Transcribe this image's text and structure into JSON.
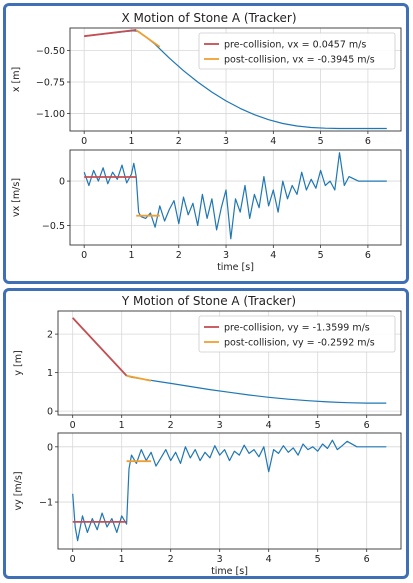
{
  "chart_data": [
    {
      "type": "line",
      "title": "X Motion of Stone A (Tracker)",
      "subplots": [
        {
          "ylabel": "x [m]",
          "xlabel": "",
          "xlim": [
            -0.3,
            6.7
          ],
          "ylim": [
            -1.14,
            -0.32
          ],
          "xticks": [
            0,
            1,
            2,
            3,
            4,
            5,
            6
          ],
          "yticks": [
            -0.5,
            -0.75,
            -1.0
          ],
          "ytick_labels": [
            "−0.50",
            "−0.75",
            "−1.00"
          ],
          "grid": true,
          "legend": {
            "location": "top-right",
            "entries": [
              "pre-collision, vx = 0.0457 m/s",
              "post-collision, vx = -0.3945 m/s"
            ]
          },
          "series": [
            {
              "color": "#1f77b4",
              "x": [
                0,
                0.3,
                0.6,
                0.9,
                1.05,
                1.15,
                1.3,
                1.5,
                1.8,
                2.1,
                2.4,
                2.7,
                3.0,
                3.3,
                3.6,
                3.9,
                4.2,
                4.5,
                4.8,
                5.1,
                5.4,
                5.7,
                6.0,
                6.4
              ],
              "y": [
                -0.385,
                -0.372,
                -0.36,
                -0.347,
                -0.342,
                -0.348,
                -0.39,
                -0.45,
                -0.56,
                -0.66,
                -0.75,
                -0.83,
                -0.9,
                -0.96,
                -1.01,
                -1.05,
                -1.08,
                -1.1,
                -1.112,
                -1.118,
                -1.12,
                -1.12,
                -1.12,
                -1.12
              ]
            },
            {
              "name": "pre-collision, vx = 0.0457 m/s",
              "color": "#c44e52",
              "x": [
                0,
                1.1
              ],
              "y": [
                -0.385,
                -0.335
              ]
            },
            {
              "name": "post-collision, vx = -0.3945 m/s",
              "color": "#f0a030",
              "x": [
                1.1,
                1.6
              ],
              "y": [
                -0.337,
                -0.47
              ]
            }
          ]
        },
        {
          "ylabel": "vx [m/s]",
          "xlabel": "time [s]",
          "xlim": [
            -0.3,
            6.7
          ],
          "ylim": [
            -0.72,
            0.35
          ],
          "xticks": [
            0,
            1,
            2,
            3,
            4,
            5,
            6
          ],
          "yticks": [
            0,
            -0.5
          ],
          "ytick_labels": [
            "0",
            "−0.5"
          ],
          "grid": true,
          "series": [
            {
              "color": "#1f77b4",
              "x": [
                0,
                0.1,
                0.2,
                0.3,
                0.4,
                0.5,
                0.6,
                0.7,
                0.8,
                0.9,
                1.0,
                1.05,
                1.1,
                1.15,
                1.2,
                1.3,
                1.4,
                1.5,
                1.6,
                1.7,
                1.8,
                1.9,
                2.0,
                2.1,
                2.2,
                2.3,
                2.4,
                2.5,
                2.6,
                2.7,
                2.8,
                2.9,
                3.0,
                3.1,
                3.2,
                3.3,
                3.4,
                3.5,
                3.6,
                3.7,
                3.8,
                3.9,
                4.0,
                4.1,
                4.2,
                4.3,
                4.4,
                4.5,
                4.6,
                4.7,
                4.8,
                4.9,
                5.0,
                5.1,
                5.2,
                5.3,
                5.4,
                5.5,
                5.6,
                5.8,
                6.0,
                6.4
              ],
              "y": [
                0.1,
                -0.05,
                0.12,
                0.0,
                0.15,
                -0.03,
                0.1,
                0.02,
                0.18,
                -0.02,
                0.08,
                0.2,
                0.05,
                -0.35,
                -0.4,
                -0.42,
                -0.36,
                -0.52,
                -0.28,
                -0.45,
                -0.32,
                -0.22,
                -0.48,
                -0.18,
                -0.38,
                -0.25,
                -0.5,
                -0.15,
                -0.42,
                -0.2,
                -0.55,
                -0.3,
                -0.1,
                -0.65,
                -0.2,
                -0.35,
                -0.05,
                -0.42,
                -0.15,
                -0.3,
                0.05,
                -0.28,
                -0.1,
                -0.35,
                0.0,
                -0.2,
                -0.05,
                -0.15,
                0.1,
                -0.1,
                0.02,
                -0.08,
                0.12,
                -0.05,
                0.0,
                -0.1,
                0.32,
                -0.05,
                0.05,
                0.0,
                0.0,
                0.0
              ]
            },
            {
              "name": "pre-collision",
              "color": "#c44e52",
              "x": [
                0,
                1.1
              ],
              "y": [
                0.046,
                0.046
              ]
            },
            {
              "name": "post-collision",
              "color": "#f0a030",
              "x": [
                1.1,
                1.6
              ],
              "y": [
                -0.39,
                -0.39
              ]
            }
          ]
        }
      ]
    },
    {
      "type": "line",
      "title": "Y Motion of Stone A (Tracker)",
      "subplots": [
        {
          "ylabel": "y [m]",
          "xlabel": "",
          "xlim": [
            -0.3,
            6.7
          ],
          "ylim": [
            -0.1,
            2.6
          ],
          "xticks": [
            0,
            1,
            2,
            3,
            4,
            5,
            6
          ],
          "yticks": [
            0,
            1,
            2
          ],
          "ytick_labels": [
            "0",
            "1",
            "2"
          ],
          "grid": true,
          "legend": {
            "location": "top-right",
            "entries": [
              "pre-collision, vy = -1.3599 m/s",
              "post-collision, vy = -0.2592 m/s"
            ]
          },
          "series": [
            {
              "color": "#1f77b4",
              "x": [
                0,
                0.3,
                0.6,
                0.9,
                1.1,
                1.2,
                1.4,
                1.7,
                2.0,
                2.4,
                2.8,
                3.2,
                3.6,
                4.0,
                4.4,
                4.8,
                5.2,
                5.6,
                6.0,
                6.4
              ],
              "y": [
                2.42,
                2.01,
                1.6,
                1.19,
                0.92,
                0.88,
                0.84,
                0.78,
                0.72,
                0.64,
                0.56,
                0.49,
                0.42,
                0.36,
                0.31,
                0.27,
                0.24,
                0.22,
                0.21,
                0.21
              ]
            },
            {
              "name": "pre-collision, vy = -1.3599 m/s",
              "color": "#c44e52",
              "x": [
                0,
                1.1
              ],
              "y": [
                2.42,
                0.92
              ]
            },
            {
              "name": "post-collision, vy = -0.2592 m/s",
              "color": "#f0a030",
              "x": [
                1.1,
                1.6
              ],
              "y": [
                0.92,
                0.79
              ]
            }
          ]
        },
        {
          "ylabel": "vy [m/s]",
          "xlabel": "time [s]",
          "xlim": [
            -0.3,
            6.7
          ],
          "ylim": [
            -1.85,
            0.25
          ],
          "xticks": [
            0,
            1,
            2,
            3,
            4,
            5,
            6
          ],
          "yticks": [
            0,
            -1
          ],
          "ytick_labels": [
            "0",
            "−1"
          ],
          "grid": true,
          "series": [
            {
              "color": "#1f77b4",
              "x": [
                0,
                0.05,
                0.1,
                0.2,
                0.3,
                0.4,
                0.5,
                0.6,
                0.7,
                0.8,
                0.9,
                1.0,
                1.1,
                1.15,
                1.2,
                1.3,
                1.4,
                1.5,
                1.6,
                1.7,
                1.8,
                1.9,
                2.0,
                2.1,
                2.2,
                2.3,
                2.4,
                2.5,
                2.6,
                2.7,
                2.8,
                2.9,
                3.0,
                3.1,
                3.2,
                3.3,
                3.4,
                3.5,
                3.6,
                3.7,
                3.8,
                3.9,
                4.0,
                4.1,
                4.2,
                4.3,
                4.4,
                4.5,
                4.6,
                4.7,
                4.8,
                4.9,
                5.0,
                5.1,
                5.2,
                5.3,
                5.4,
                5.5,
                5.6,
                5.8,
                6.0,
                6.4
              ],
              "y": [
                -0.85,
                -1.45,
                -1.7,
                -1.25,
                -1.55,
                -1.3,
                -1.5,
                -1.2,
                -1.45,
                -1.3,
                -1.55,
                -1.25,
                -1.4,
                -0.4,
                -0.15,
                -0.3,
                -0.05,
                -0.25,
                -0.1,
                -0.35,
                -0.2,
                -0.05,
                -0.25,
                -0.1,
                -0.3,
                0.0,
                -0.2,
                -0.05,
                -0.25,
                -0.1,
                -0.2,
                0.02,
                -0.15,
                -0.05,
                -0.25,
                -0.08,
                -0.15,
                0.03,
                -0.12,
                -0.05,
                -0.18,
                0.0,
                -0.45,
                -0.05,
                -0.12,
                0.02,
                -0.1,
                -0.02,
                -0.15,
                0.05,
                -0.05,
                0.0,
                -0.08,
                0.05,
                -0.03,
                0.12,
                -0.05,
                0.02,
                0.1,
                0.0,
                0.0,
                0.0
              ]
            },
            {
              "name": "pre-collision",
              "color": "#c44e52",
              "x": [
                0,
                1.1
              ],
              "y": [
                -1.36,
                -1.36
              ]
            },
            {
              "name": "post-collision",
              "color": "#f0a030",
              "x": [
                1.1,
                1.6
              ],
              "y": [
                -0.26,
                -0.26
              ]
            }
          ]
        }
      ]
    }
  ]
}
